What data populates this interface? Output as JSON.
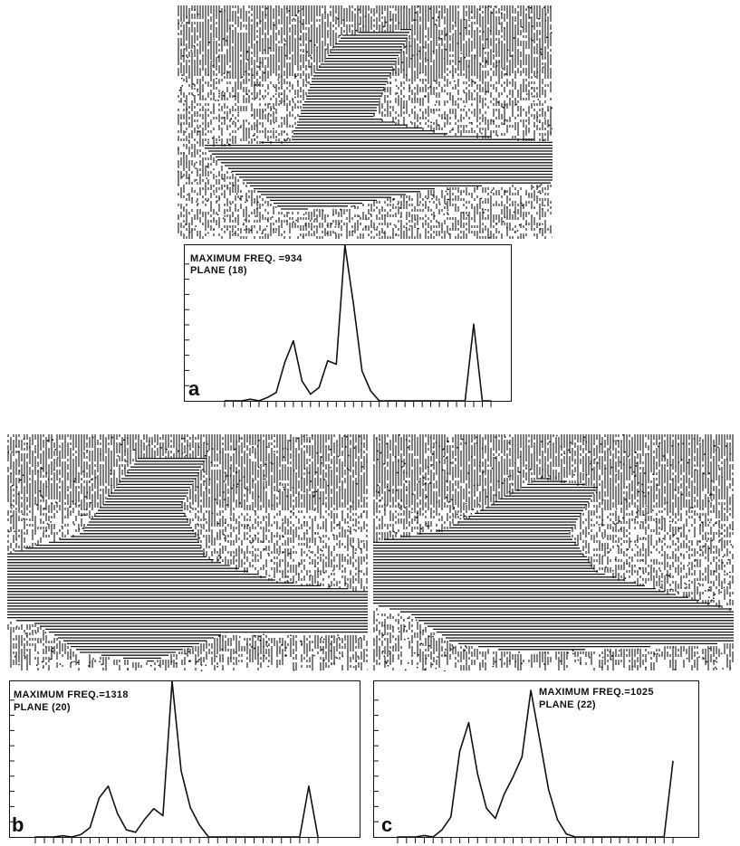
{
  "panels": [
    {
      "letter": "a",
      "max_freq_label": "MAXIMUM FREQ. =934",
      "plane_label": "PLANE (18)"
    },
    {
      "letter": "b",
      "max_freq_label": "MAXIMUM FREQ.=1318",
      "plane_label": "PLANE (20)"
    },
    {
      "letter": "c",
      "max_freq_label": "MAXIMUM FREQ.=1025",
      "plane_label": "PLANE (22)"
    }
  ],
  "chart_data": [
    {
      "type": "line",
      "panel": "a",
      "max_frequency": 934,
      "plane": 18,
      "ylim": [
        0,
        934
      ],
      "x": [
        0,
        1,
        2,
        3,
        4,
        5,
        6,
        7,
        8,
        9,
        10,
        11,
        12,
        13,
        14,
        15,
        16,
        17,
        18,
        19,
        20,
        21,
        22,
        23,
        24,
        25,
        26,
        27,
        28,
        29,
        30,
        31
      ],
      "values": [
        0,
        0,
        0,
        10,
        0,
        20,
        50,
        230,
        360,
        120,
        40,
        80,
        240,
        220,
        934,
        580,
        180,
        60,
        0,
        0,
        0,
        0,
        0,
        0,
        0,
        0,
        0,
        0,
        0,
        460,
        0,
        0
      ]
    },
    {
      "type": "line",
      "panel": "b",
      "max_frequency": 1318,
      "plane": 20,
      "ylim": [
        0,
        1318
      ],
      "x": [
        0,
        1,
        2,
        3,
        4,
        5,
        6,
        7,
        8,
        9,
        10,
        11,
        12,
        13,
        14,
        15,
        16,
        17,
        18,
        19,
        20,
        21,
        22,
        23,
        24,
        25,
        26,
        27,
        28,
        29,
        30,
        31
      ],
      "values": [
        0,
        0,
        0,
        10,
        0,
        20,
        80,
        330,
        430,
        200,
        60,
        40,
        150,
        240,
        180,
        1318,
        560,
        250,
        100,
        0,
        0,
        0,
        0,
        0,
        0,
        0,
        0,
        0,
        0,
        0,
        430,
        0
      ]
    },
    {
      "type": "line",
      "panel": "c",
      "max_frequency": 1025,
      "plane": 22,
      "ylim": [
        0,
        1025
      ],
      "x": [
        0,
        1,
        2,
        3,
        4,
        5,
        6,
        7,
        8,
        9,
        10,
        11,
        12,
        13,
        14,
        15,
        16,
        17,
        18,
        19,
        20,
        21,
        22,
        23,
        24,
        25,
        26,
        27,
        28,
        29,
        30,
        31
      ],
      "values": [
        0,
        0,
        0,
        10,
        0,
        50,
        140,
        600,
        800,
        440,
        200,
        130,
        300,
        420,
        560,
        1025,
        680,
        330,
        120,
        20,
        0,
        0,
        0,
        0,
        0,
        0,
        0,
        0,
        0,
        0,
        0,
        530
      ]
    }
  ]
}
